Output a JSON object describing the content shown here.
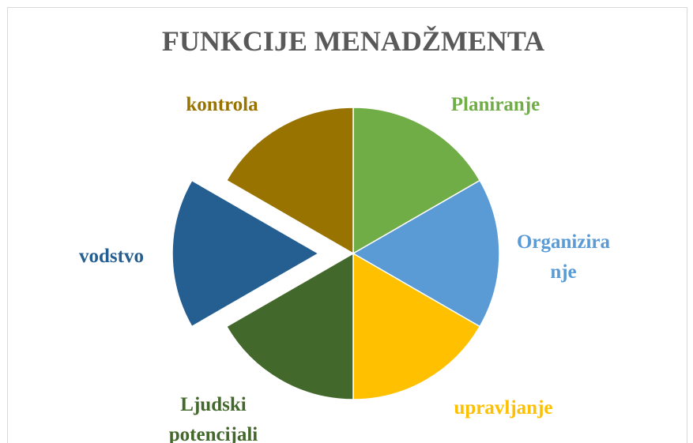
{
  "chart_data": {
    "type": "pie",
    "title": "FUNKCIJE MENADŽMENTA",
    "categories": [
      "Planiranje",
      "Organiziranje",
      "upravljanje",
      "Ljudski potencijali",
      "vodstvo",
      "kontrola"
    ],
    "values": [
      1,
      1,
      1,
      1,
      1,
      1
    ],
    "colors": [
      "#70ad47",
      "#5b9bd5",
      "#ffc000",
      "#43682b",
      "#255e91",
      "#997300"
    ],
    "exploded": [
      false,
      false,
      false,
      false,
      true,
      false
    ]
  }
}
